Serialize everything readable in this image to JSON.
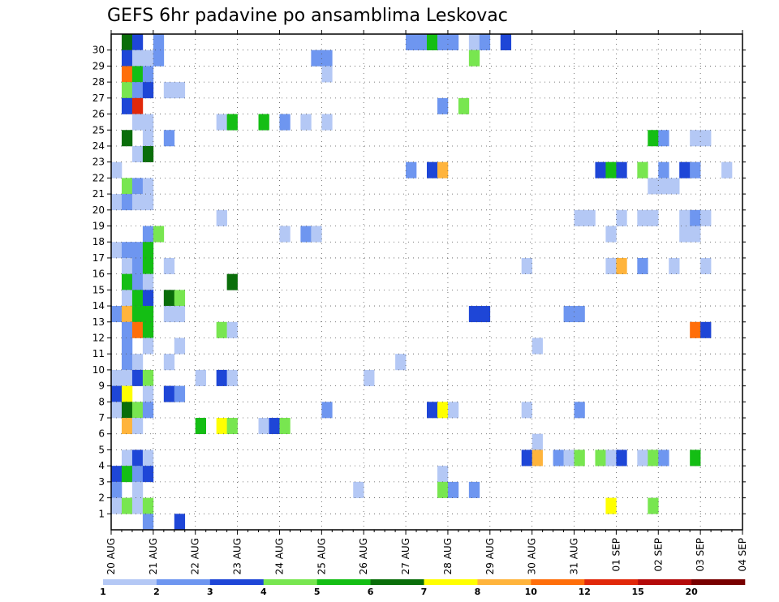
{
  "chart_data": {
    "type": "heatmap",
    "title": "GEFS 6hr padavine po ansamblima Leskovac",
    "x_labels": [
      "20 AUG",
      "21 AUG",
      "22 AUG",
      "23 AUG",
      "24 AUG",
      "25 AUG",
      "26 AUG",
      "27 AUG",
      "28 AUG",
      "29 AUG",
      "30 AUG",
      "31 AUG",
      "01 SEP",
      "02 SEP",
      "03 SEP",
      "04 SEP"
    ],
    "y_labels": [
      "1",
      "2",
      "3",
      "4",
      "5",
      "6",
      "7",
      "8",
      "9",
      "10",
      "11",
      "12",
      "13",
      "14",
      "15",
      "16",
      "17",
      "18",
      "19",
      "20",
      "21",
      "22",
      "23",
      "24",
      "25",
      "26",
      "27",
      "28",
      "29",
      "30"
    ],
    "steps_per_day": 4,
    "grid": true,
    "legend_position": "bottom",
    "legend_thresholds": [
      "1",
      "2",
      "3",
      "4",
      "5",
      "6",
      "7",
      "8",
      "10",
      "12",
      "15",
      "20"
    ],
    "legend_colors": [
      "#b4c8f5",
      "#6e96f0",
      "#1e46d7",
      "#78e650",
      "#14be14",
      "#0a6e0a",
      "#ffff00",
      "#ffb43c",
      "#ff6e0a",
      "#e1280a",
      "#b40a0a",
      "#780000"
    ],
    "cells": [
      {
        "t": "20 AUG 06",
        "m": 30,
        "c": 6
      },
      {
        "t": "20 AUG 12",
        "m": 30,
        "c": 3
      },
      {
        "t": "21 AUG 00",
        "m": 30,
        "c": 2
      },
      {
        "t": "20 AUG 06",
        "m": 29,
        "c": 3
      },
      {
        "t": "20 AUG 12",
        "m": 29,
        "c": 1
      },
      {
        "t": "20 AUG 18",
        "m": 29,
        "c": 1
      },
      {
        "t": "21 AUG 00",
        "m": 29,
        "c": 2
      },
      {
        "t": "20 AUG 06",
        "m": 28,
        "c": 9
      },
      {
        "t": "20 AUG 12",
        "m": 28,
        "c": 5
      },
      {
        "t": "20 AUG 18",
        "m": 28,
        "c": 2
      },
      {
        "t": "20 AUG 06",
        "m": 27,
        "c": 4
      },
      {
        "t": "20 AUG 12",
        "m": 27,
        "c": 2
      },
      {
        "t": "20 AUG 18",
        "m": 27,
        "c": 3
      },
      {
        "t": "21 AUG 06",
        "m": 27,
        "c": 1
      },
      {
        "t": "21 AUG 12",
        "m": 27,
        "c": 1
      },
      {
        "t": "20 AUG 06",
        "m": 26,
        "c": 3
      },
      {
        "t": "20 AUG 12",
        "m": 26,
        "c": 10
      },
      {
        "t": "20 AUG 12",
        "m": 25,
        "c": 1
      },
      {
        "t": "20 AUG 18",
        "m": 25,
        "c": 1
      },
      {
        "t": "20 AUG 06",
        "m": 24,
        "c": 6
      },
      {
        "t": "20 AUG 18",
        "m": 24,
        "c": 1
      },
      {
        "t": "21 AUG 06",
        "m": 24,
        "c": 2
      },
      {
        "t": "20 AUG 12",
        "m": 23,
        "c": 1
      },
      {
        "t": "20 AUG 18",
        "m": 23,
        "c": 6
      },
      {
        "t": "20 AUG 00",
        "m": 22,
        "c": 1
      },
      {
        "t": "20 AUG 06",
        "m": 21,
        "c": 4
      },
      {
        "t": "20 AUG 12",
        "m": 21,
        "c": 2
      },
      {
        "t": "20 AUG 18",
        "m": 21,
        "c": 1
      },
      {
        "t": "20 AUG 00",
        "m": 20,
        "c": 1
      },
      {
        "t": "20 AUG 06",
        "m": 20,
        "c": 2
      },
      {
        "t": "20 AUG 12",
        "m": 20,
        "c": 1
      },
      {
        "t": "20 AUG 18",
        "m": 20,
        "c": 1
      },
      {
        "t": "20 AUG 18",
        "m": 18,
        "c": 2
      },
      {
        "t": "21 AUG 00",
        "m": 18,
        "c": 4
      },
      {
        "t": "20 AUG 00",
        "m": 17,
        "c": 1
      },
      {
        "t": "20 AUG 06",
        "m": 17,
        "c": 2
      },
      {
        "t": "20 AUG 12",
        "m": 17,
        "c": 2
      },
      {
        "t": "20 AUG 18",
        "m": 17,
        "c": 5
      },
      {
        "t": "20 AUG 06",
        "m": 16,
        "c": 1
      },
      {
        "t": "20 AUG 12",
        "m": 16,
        "c": 2
      },
      {
        "t": "20 AUG 18",
        "m": 16,
        "c": 5
      },
      {
        "t": "21 AUG 06",
        "m": 16,
        "c": 1
      },
      {
        "t": "20 AUG 06",
        "m": 15,
        "c": 5
      },
      {
        "t": "20 AUG 12",
        "m": 15,
        "c": 2
      },
      {
        "t": "20 AUG 18",
        "m": 15,
        "c": 1
      },
      {
        "t": "20 AUG 06",
        "m": 14,
        "c": 1
      },
      {
        "t": "20 AUG 12",
        "m": 14,
        "c": 5
      },
      {
        "t": "20 AUG 18",
        "m": 14,
        "c": 3
      },
      {
        "t": "21 AUG 06",
        "m": 14,
        "c": 6
      },
      {
        "t": "21 AUG 12",
        "m": 14,
        "c": 4
      },
      {
        "t": "20 AUG 00",
        "m": 13,
        "c": 2
      },
      {
        "t": "20 AUG 06",
        "m": 13,
        "c": 8
      },
      {
        "t": "20 AUG 12",
        "m": 13,
        "c": 5
      },
      {
        "t": "20 AUG 18",
        "m": 13,
        "c": 5
      },
      {
        "t": "21 AUG 06",
        "m": 13,
        "c": 1
      },
      {
        "t": "21 AUG 12",
        "m": 13,
        "c": 1
      },
      {
        "t": "20 AUG 06",
        "m": 12,
        "c": 2
      },
      {
        "t": "20 AUG 12",
        "m": 12,
        "c": 9
      },
      {
        "t": "20 AUG 18",
        "m": 12,
        "c": 5
      },
      {
        "t": "20 AUG 06",
        "m": 11,
        "c": 2
      },
      {
        "t": "20 AUG 18",
        "m": 11,
        "c": 1
      },
      {
        "t": "21 AUG 12",
        "m": 11,
        "c": 1
      },
      {
        "t": "20 AUG 06",
        "m": 10,
        "c": 2
      },
      {
        "t": "20 AUG 12",
        "m": 10,
        "c": 1
      },
      {
        "t": "21 AUG 06",
        "m": 10,
        "c": 1
      },
      {
        "t": "20 AUG 00",
        "m": 9,
        "c": 1
      },
      {
        "t": "20 AUG 06",
        "m": 9,
        "c": 1
      },
      {
        "t": "20 AUG 12",
        "m": 9,
        "c": 3
      },
      {
        "t": "20 AUG 18",
        "m": 9,
        "c": 4
      },
      {
        "t": "22 AUG 00",
        "m": 9,
        "c": 1
      },
      {
        "t": "20 AUG 00",
        "m": 8,
        "c": 3
      },
      {
        "t": "20 AUG 06",
        "m": 8,
        "c": 7
      },
      {
        "t": "20 AUG 18",
        "m": 8,
        "c": 1
      },
      {
        "t": "21 AUG 06",
        "m": 8,
        "c": 3
      },
      {
        "t": "21 AUG 12",
        "m": 8,
        "c": 2
      },
      {
        "t": "20 AUG 00",
        "m": 7,
        "c": 1
      },
      {
        "t": "20 AUG 06",
        "m": 7,
        "c": 6
      },
      {
        "t": "20 AUG 12",
        "m": 7,
        "c": 4
      },
      {
        "t": "20 AUG 18",
        "m": 7,
        "c": 2
      },
      {
        "t": "20 AUG 06",
        "m": 6,
        "c": 8
      },
      {
        "t": "20 AUG 12",
        "m": 6,
        "c": 1
      },
      {
        "t": "22 AUG 00",
        "m": 6,
        "c": 5
      },
      {
        "t": "20 AUG 06",
        "m": 4,
        "c": 1
      },
      {
        "t": "20 AUG 12",
        "m": 4,
        "c": 3
      },
      {
        "t": "20 AUG 18",
        "m": 4,
        "c": 1
      },
      {
        "t": "20 AUG 00",
        "m": 3,
        "c": 3
      },
      {
        "t": "20 AUG 06",
        "m": 3,
        "c": 5
      },
      {
        "t": "20 AUG 12",
        "m": 3,
        "c": 2
      },
      {
        "t": "20 AUG 18",
        "m": 3,
        "c": 3
      },
      {
        "t": "20 AUG 00",
        "m": 2,
        "c": 2
      },
      {
        "t": "20 AUG 12",
        "m": 2,
        "c": 1
      },
      {
        "t": "20 AUG 00",
        "m": 1,
        "c": 1
      },
      {
        "t": "20 AUG 06",
        "m": 1,
        "c": 4
      },
      {
        "t": "20 AUG 12",
        "m": 1,
        "c": 1
      },
      {
        "t": "20 AUG 18",
        "m": 1,
        "c": 4
      },
      {
        "t": "20 AUG 18",
        "m": 0,
        "c": 2
      },
      {
        "t": "21 AUG 12",
        "m": 0,
        "c": 3
      },
      {
        "t": "22 AUG 12",
        "m": 25,
        "c": 1
      },
      {
        "t": "22 AUG 18",
        "m": 25,
        "c": 5
      },
      {
        "t": "23 AUG 12",
        "m": 25,
        "c": 5
      },
      {
        "t": "24 AUG 00",
        "m": 25,
        "c": 2
      },
      {
        "t": "24 AUG 12",
        "m": 25,
        "c": 1
      },
      {
        "t": "25 AUG 00",
        "m": 25,
        "c": 1
      },
      {
        "t": "24 AUG 18",
        "m": 29,
        "c": 2
      },
      {
        "t": "25 AUG 00",
        "m": 29,
        "c": 2
      },
      {
        "t": "25 AUG 00",
        "m": 28,
        "c": 1
      },
      {
        "t": "22 AUG 12",
        "m": 19,
        "c": 1
      },
      {
        "t": "24 AUG 00",
        "m": 18,
        "c": 1
      },
      {
        "t": "24 AUG 12",
        "m": 18,
        "c": 2
      },
      {
        "t": "24 AUG 18",
        "m": 18,
        "c": 1
      },
      {
        "t": "22 AUG 18",
        "m": 15,
        "c": 6
      },
      {
        "t": "22 AUG 12",
        "m": 12,
        "c": 4
      },
      {
        "t": "22 AUG 18",
        "m": 12,
        "c": 1
      },
      {
        "t": "22 AUG 12",
        "m": 9,
        "c": 3
      },
      {
        "t": "22 AUG 18",
        "m": 9,
        "c": 1
      },
      {
        "t": "25 AUG 00",
        "m": 7,
        "c": 2
      },
      {
        "t": "22 AUG 12",
        "m": 6,
        "c": 7
      },
      {
        "t": "22 AUG 18",
        "m": 6,
        "c": 4
      },
      {
        "t": "23 AUG 12",
        "m": 6,
        "c": 1
      },
      {
        "t": "23 AUG 18",
        "m": 6,
        "c": 3
      },
      {
        "t": "24 AUG 00",
        "m": 6,
        "c": 4
      },
      {
        "t": "26 AUG 00",
        "m": 9,
        "c": 1
      },
      {
        "t": "26 AUG 18",
        "m": 10,
        "c": 1
      },
      {
        "t": "25 AUG 18",
        "m": 2,
        "c": 1
      },
      {
        "t": "27 AUG 00",
        "m": 30,
        "c": 2
      },
      {
        "t": "27 AUG 06",
        "m": 30,
        "c": 2
      },
      {
        "t": "27 AUG 12",
        "m": 30,
        "c": 5
      },
      {
        "t": "27 AUG 18",
        "m": 30,
        "c": 2
      },
      {
        "t": "28 AUG 00",
        "m": 30,
        "c": 2
      },
      {
        "t": "28 AUG 12",
        "m": 30,
        "c": 1
      },
      {
        "t": "28 AUG 18",
        "m": 30,
        "c": 2
      },
      {
        "t": "29 AUG 06",
        "m": 30,
        "c": 3
      },
      {
        "t": "28 AUG 12",
        "m": 29,
        "c": 4
      },
      {
        "t": "27 AUG 18",
        "m": 26,
        "c": 2
      },
      {
        "t": "28 AUG 06",
        "m": 26,
        "c": 4
      },
      {
        "t": "27 AUG 00",
        "m": 22,
        "c": 2
      },
      {
        "t": "27 AUG 12",
        "m": 22,
        "c": 3
      },
      {
        "t": "27 AUG 18",
        "m": 22,
        "c": 8
      },
      {
        "t": "28 AUG 12",
        "m": 13,
        "c": 3
      },
      {
        "t": "28 AUG 18",
        "m": 13,
        "c": 3
      },
      {
        "t": "27 AUG 12",
        "m": 7,
        "c": 3
      },
      {
        "t": "27 AUG 18",
        "m": 7,
        "c": 7
      },
      {
        "t": "28 AUG 00",
        "m": 7,
        "c": 1
      },
      {
        "t": "27 AUG 18",
        "m": 3,
        "c": 1
      },
      {
        "t": "27 AUG 18",
        "m": 2,
        "c": 4
      },
      {
        "t": "28 AUG 00",
        "m": 2,
        "c": 2
      },
      {
        "t": "28 AUG 12",
        "m": 2,
        "c": 2
      },
      {
        "t": "29 AUG 18",
        "m": 16,
        "c": 1
      },
      {
        "t": "30 AUG 00",
        "m": 11,
        "c": 1
      },
      {
        "t": "29 AUG 18",
        "m": 7,
        "c": 1
      },
      {
        "t": "30 AUG 00",
        "m": 5,
        "c": 1
      },
      {
        "t": "29 AUG 18",
        "m": 4,
        "c": 3
      },
      {
        "t": "30 AUG 00",
        "m": 4,
        "c": 8
      },
      {
        "t": "30 AUG 12",
        "m": 4,
        "c": 2
      },
      {
        "t": "30 AUG 18",
        "m": 4,
        "c": 1
      },
      {
        "t": "31 AUG 00",
        "m": 4,
        "c": 4
      },
      {
        "t": "31 AUG 12",
        "m": 4,
        "c": 4
      },
      {
        "t": "31 AUG 18",
        "m": 4,
        "c": 1
      },
      {
        "t": "01 SEP 00",
        "m": 4,
        "c": 3
      },
      {
        "t": "01 SEP 12",
        "m": 4,
        "c": 1
      },
      {
        "t": "01 SEP 18",
        "m": 4,
        "c": 4
      },
      {
        "t": "02 SEP 00",
        "m": 4,
        "c": 2
      },
      {
        "t": "02 SEP 18",
        "m": 4,
        "c": 5
      },
      {
        "t": "30 AUG 18",
        "m": 13,
        "c": 2
      },
      {
        "t": "31 AUG 00",
        "m": 13,
        "c": 2
      },
      {
        "t": "31 AUG 00",
        "m": 7,
        "c": 2
      },
      {
        "t": "31 AUG 00",
        "m": 19,
        "c": 1
      },
      {
        "t": "31 AUG 06",
        "m": 19,
        "c": 1
      },
      {
        "t": "01 SEP 00",
        "m": 19,
        "c": 1
      },
      {
        "t": "01 SEP 12",
        "m": 19,
        "c": 1
      },
      {
        "t": "01 SEP 18",
        "m": 19,
        "c": 1
      },
      {
        "t": "02 SEP 12",
        "m": 19,
        "c": 1
      },
      {
        "t": "02 SEP 18",
        "m": 19,
        "c": 2
      },
      {
        "t": "03 SEP 00",
        "m": 19,
        "c": 1
      },
      {
        "t": "31 AUG 18",
        "m": 18,
        "c": 1
      },
      {
        "t": "02 SEP 12",
        "m": 18,
        "c": 1
      },
      {
        "t": "02 SEP 18",
        "m": 18,
        "c": 1
      },
      {
        "t": "31 AUG 12",
        "m": 22,
        "c": 3
      },
      {
        "t": "31 AUG 18",
        "m": 22,
        "c": 5
      },
      {
        "t": "01 SEP 00",
        "m": 22,
        "c": 3
      },
      {
        "t": "01 SEP 12",
        "m": 22,
        "c": 4
      },
      {
        "t": "02 SEP 00",
        "m": 22,
        "c": 2
      },
      {
        "t": "02 SEP 12",
        "m": 22,
        "c": 3
      },
      {
        "t": "02 SEP 18",
        "m": 22,
        "c": 2
      },
      {
        "t": "03 SEP 12",
        "m": 22,
        "c": 1
      },
      {
        "t": "01 SEP 18",
        "m": 21,
        "c": 1
      },
      {
        "t": "02 SEP 00",
        "m": 21,
        "c": 1
      },
      {
        "t": "02 SEP 06",
        "m": 21,
        "c": 1
      },
      {
        "t": "31 AUG 18",
        "m": 16,
        "c": 1
      },
      {
        "t": "01 SEP 00",
        "m": 16,
        "c": 8
      },
      {
        "t": "01 SEP 12",
        "m": 16,
        "c": 2
      },
      {
        "t": "02 SEP 06",
        "m": 16,
        "c": 1
      },
      {
        "t": "03 SEP 00",
        "m": 16,
        "c": 1
      },
      {
        "t": "01 SEP 18",
        "m": 24,
        "c": 5
      },
      {
        "t": "02 SEP 00",
        "m": 24,
        "c": 2
      },
      {
        "t": "02 SEP 18",
        "m": 24,
        "c": 1
      },
      {
        "t": "03 SEP 00",
        "m": 24,
        "c": 1
      },
      {
        "t": "02 SEP 18",
        "m": 12,
        "c": 9
      },
      {
        "t": "03 SEP 00",
        "m": 12,
        "c": 3
      },
      {
        "t": "31 AUG 18",
        "m": 1,
        "c": 7
      },
      {
        "t": "01 SEP 18",
        "m": 1,
        "c": 4
      }
    ]
  }
}
